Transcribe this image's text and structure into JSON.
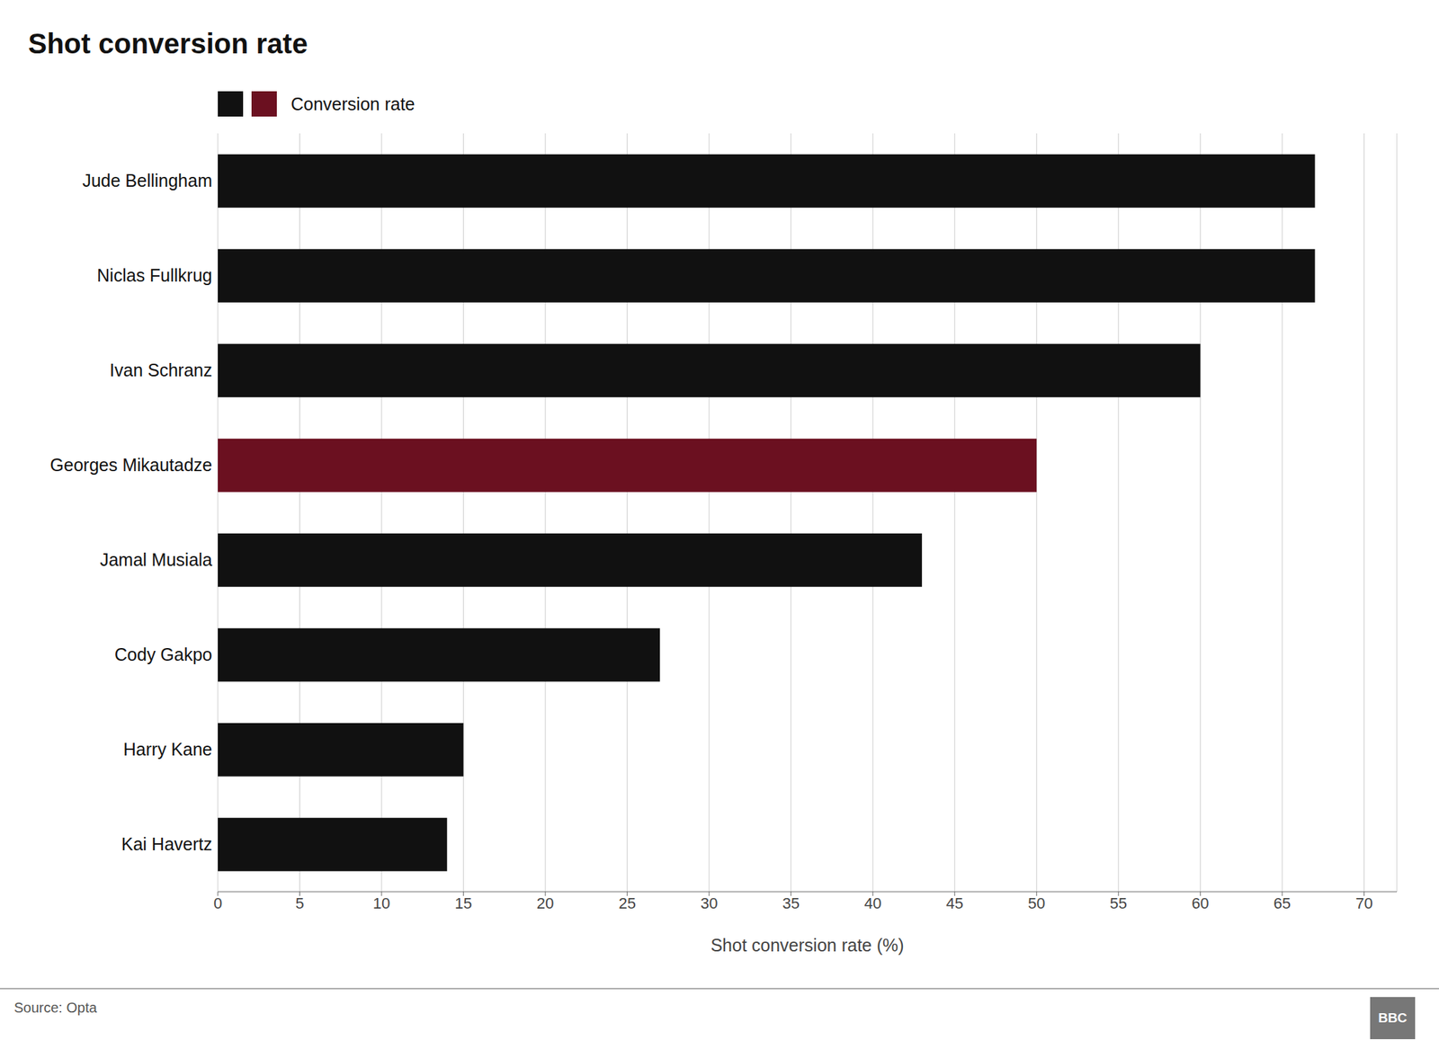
{
  "chart_data": {
    "type": "bar",
    "orientation": "horizontal",
    "title": "Shot conversion rate",
    "categories": [
      "Jude Bellingham",
      "Niclas Fullkrug",
      "Ivan Schranz",
      "Georges Mikautadze",
      "Jamal Musiala",
      "Cody Gakpo",
      "Harry Kane",
      "Kai Havertz"
    ],
    "series": [
      {
        "name": "Conversion rate",
        "values": [
          67,
          67,
          60,
          50,
          43,
          27,
          15,
          14
        ],
        "colors": [
          "#111111",
          "#111111",
          "#111111",
          "#6b1020",
          "#111111",
          "#111111",
          "#111111",
          "#111111"
        ]
      }
    ],
    "xlabel": "Shot conversion rate (%)",
    "xlim": [
      0,
      72
    ],
    "xticks": [
      0,
      5,
      10,
      15,
      20,
      25,
      30,
      35,
      40,
      45,
      50,
      55,
      60,
      65,
      70
    ],
    "grid": true,
    "legend": "upper left",
    "annotations": [
      "Source: Opta",
      "BBC"
    ]
  }
}
